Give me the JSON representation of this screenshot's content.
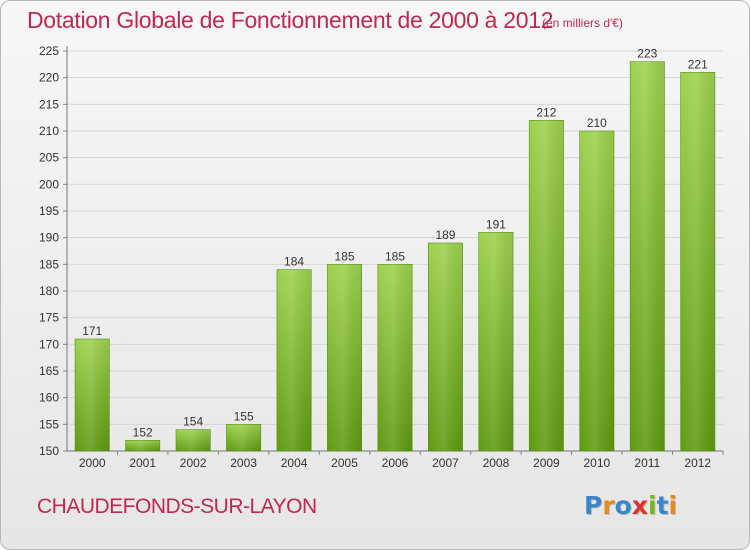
{
  "header": {
    "title": "Dotation Globale de Fonctionnement de 2000 à 2012",
    "unit": "(en milliers d'€)"
  },
  "commune": "CHAUDEFONDS-SUR-LAYON",
  "logo": {
    "text": "Proxiti",
    "letters": [
      {
        "ch": "P",
        "color": "#3a86c8"
      },
      {
        "ch": "r",
        "color": "#e8891c"
      },
      {
        "ch": "o",
        "color": "#3a86c8"
      },
      {
        "ch": "x",
        "color": "#e2312d"
      },
      {
        "ch": "i",
        "color": "#7ab51d"
      },
      {
        "ch": "t",
        "color": "#3a86c8"
      },
      {
        "ch": "i",
        "color": "#e8891c"
      }
    ]
  },
  "colors": {
    "accent": "#c0284f",
    "bar_top": "#9dd24e",
    "bar_bottom": "#5f9a12",
    "grid": "#d6d6d6"
  },
  "chart_data": {
    "type": "bar",
    "title": "Dotation Globale de Fonctionnement de 2000 à 2012",
    "subtitle": "(en milliers d'€)",
    "xlabel": "",
    "ylabel": "",
    "categories": [
      "2000",
      "2001",
      "2002",
      "2003",
      "2004",
      "2005",
      "2006",
      "2007",
      "2008",
      "2009",
      "2010",
      "2011",
      "2012"
    ],
    "values": [
      171,
      152,
      154,
      155,
      184,
      185,
      185,
      189,
      191,
      212,
      210,
      223,
      221
    ],
    "ylim": [
      150,
      225
    ],
    "yticks": [
      150,
      155,
      160,
      165,
      170,
      175,
      180,
      185,
      190,
      195,
      200,
      205,
      210,
      215,
      220,
      225
    ],
    "grid": true,
    "data_labels": true
  }
}
